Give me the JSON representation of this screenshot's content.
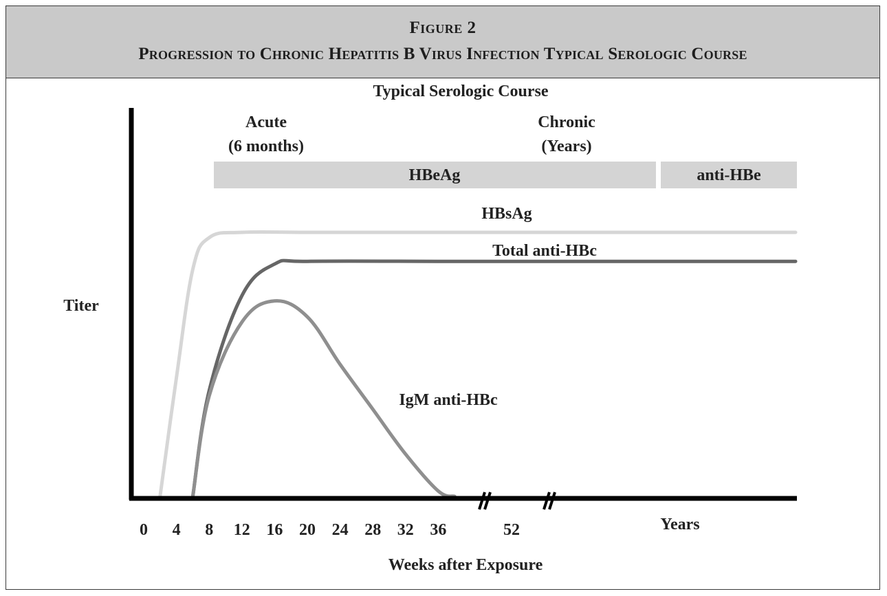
{
  "figure": {
    "number_label": "Figure 2",
    "title": "Progression to Chronic Hepatitis B Virus Infection Typical Serologic Course"
  },
  "chart_data": {
    "type": "line",
    "title": "Typical Serologic Course",
    "ylabel": "Titer",
    "xlabel": "Weeks after Exposure",
    "x_ticks": [
      "0",
      "4",
      "8",
      "12",
      "16",
      "20",
      "24",
      "28",
      "32",
      "36",
      "52",
      "Years"
    ],
    "phases": [
      {
        "name": "Acute",
        "detail": "(6 months)"
      },
      {
        "name": "Chronic",
        "detail": "(Years)"
      }
    ],
    "bands": [
      {
        "name": "HBeAg",
        "x_start": 8,
        "x_end": "Years"
      },
      {
        "name": "anti-HBe",
        "x_start": "Years",
        "x_end": "end"
      }
    ],
    "series": [
      {
        "name": "HBsAg",
        "color": "#d6d6d6",
        "points": [
          [
            2,
            0
          ],
          [
            4,
            45
          ],
          [
            6,
            86
          ],
          [
            8,
            98
          ],
          [
            12,
            100
          ],
          [
            20,
            100
          ],
          [
            36,
            100
          ],
          [
            52,
            100
          ],
          [
            "Years",
            100
          ]
        ]
      },
      {
        "name": "Total anti-HBc",
        "color": "#666666",
        "points": [
          [
            6,
            0
          ],
          [
            8,
            40
          ],
          [
            12,
            76
          ],
          [
            16,
            88
          ],
          [
            20,
            89
          ],
          [
            36,
            89
          ],
          [
            52,
            89
          ],
          [
            "Years",
            89
          ]
        ]
      },
      {
        "name": "IgM anti-HBc",
        "color": "#8f8f8f",
        "points": [
          [
            6,
            0
          ],
          [
            8,
            38
          ],
          [
            12,
            66
          ],
          [
            16,
            74
          ],
          [
            20,
            68
          ],
          [
            24,
            50
          ],
          [
            28,
            33
          ],
          [
            32,
            16
          ],
          [
            36,
            2
          ],
          [
            38,
            0
          ]
        ]
      }
    ],
    "axis_break_markers": [
      "//",
      "//"
    ],
    "legend": "inline labels"
  },
  "style": {
    "header_bg": "#c9c9c9",
    "band_color": "#d4d4d4",
    "axis_color": "#000000"
  }
}
